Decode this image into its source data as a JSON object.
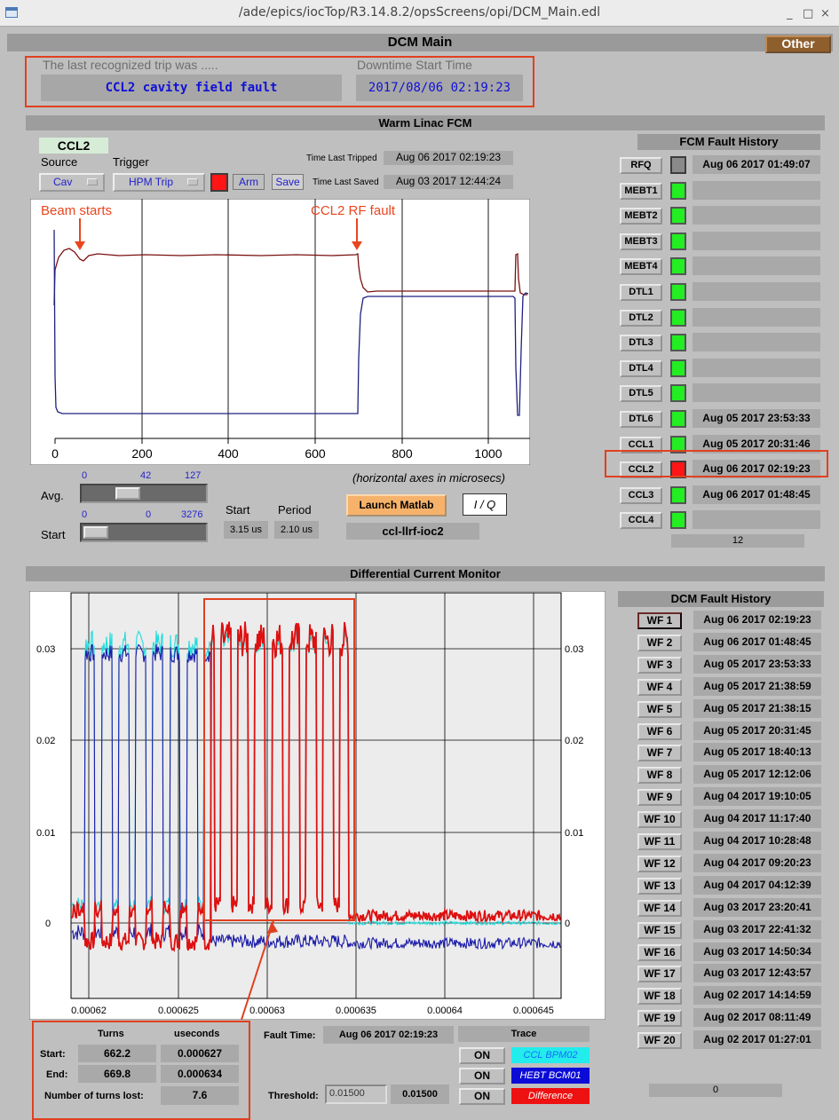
{
  "window": {
    "title": "/ade/epics/iocTop/R3.14.8.2/opsScreens/opi/DCM_Main.edl",
    "min": "_",
    "max": "□",
    "close": "×"
  },
  "header": {
    "title": "DCM Main",
    "other_button": "Other"
  },
  "trip": {
    "label": "The last recognized trip was .....",
    "value": "CCL2 cavity field fault",
    "downtime_label": "Downtime Start Time",
    "downtime_value": "2017/08/06 02:19:23"
  },
  "fcm": {
    "section_title": "Warm Linac FCM",
    "cavity": "CCL2",
    "source_label": "Source",
    "trigger_label": "Trigger",
    "source_value": "Cav",
    "trigger_value": "HPM Trip",
    "arm_label": "Arm",
    "save_label": "Save",
    "time_last_tripped_label": "Time Last Tripped",
    "time_last_tripped": "Aug 06 2017 02:19:23",
    "time_last_saved_label": "Time Last Saved",
    "time_last_saved": "Aug 03 2017 12:44:24",
    "annot_beam": "Beam starts",
    "annot_fault": "CCL2 RF fault",
    "x_ticks": [
      "0",
      "200",
      "400",
      "600",
      "800",
      "1000"
    ],
    "axes_note": "(horizontal axes in microsecs)",
    "avg_label": "Avg.",
    "avg_slider": {
      "min": "0",
      "value": "42",
      "max": "127",
      "fraction": 0.33
    },
    "start_label": "Start",
    "start_slider": {
      "min": "0",
      "value": "0",
      "max": "3276",
      "fraction": 0.0
    },
    "start_col_label": "Start",
    "period_col_label": "Period",
    "start_value": "3.15 us",
    "period_value": "2.10 us",
    "launch_button": "Launch Matlab",
    "iq_button": "I / Q",
    "ioc_name": "ccl-llrf-ioc2"
  },
  "fcm_history": {
    "title": "FCM Fault History",
    "count": "12",
    "rows": [
      {
        "name": "RFQ",
        "status": "grey",
        "time": "Aug 06 2017 01:49:07"
      },
      {
        "name": "MEBT1",
        "status": "green",
        "time": ""
      },
      {
        "name": "MEBT2",
        "status": "green",
        "time": ""
      },
      {
        "name": "MEBT3",
        "status": "green",
        "time": ""
      },
      {
        "name": "MEBT4",
        "status": "green",
        "time": ""
      },
      {
        "name": "DTL1",
        "status": "green",
        "time": ""
      },
      {
        "name": "DTL2",
        "status": "green",
        "time": ""
      },
      {
        "name": "DTL3",
        "status": "green",
        "time": ""
      },
      {
        "name": "DTL4",
        "status": "green",
        "time": ""
      },
      {
        "name": "DTL5",
        "status": "green",
        "time": ""
      },
      {
        "name": "DTL6",
        "status": "green",
        "time": "Aug 05 2017 23:53:33"
      },
      {
        "name": "CCL1",
        "status": "green",
        "time": "Aug 05 2017 20:31:46"
      },
      {
        "name": "CCL2",
        "status": "red",
        "time": "Aug 06 2017 02:19:23"
      },
      {
        "name": "CCL3",
        "status": "green",
        "time": "Aug 06 2017 01:48:45"
      },
      {
        "name": "CCL4",
        "status": "green",
        "time": ""
      }
    ]
  },
  "dcm": {
    "section_title": "Differential Current Monitor",
    "y_ticks": [
      "0.03",
      "0.02",
      "0.01",
      "0"
    ],
    "x_ticks": [
      "0.00062",
      "0.000625",
      "0.00063",
      "0.000635",
      "0.00064",
      "0.000645"
    ],
    "turns_header": "Turns",
    "useconds_header": "useconds",
    "start_label": "Start:",
    "end_label": "End:",
    "start_turns": "662.2",
    "start_useconds": "0.000627",
    "end_turns": "669.8",
    "end_useconds": "0.000634",
    "lost_label": "Number of turns lost:",
    "lost_value": "7.6",
    "fault_time_label": "Fault Time:",
    "fault_time": "Aug 06 2017 02:19:23",
    "threshold_label": "Threshold:",
    "threshold_input": "0.01500",
    "threshold_value": "0.01500",
    "trace_header": "Trace",
    "traces": [
      {
        "on": "ON",
        "name": "CCL BPM02",
        "bg": "#22ecec",
        "fg": "#1a6aff"
      },
      {
        "on": "ON",
        "name": "HEBT BCM01",
        "bg": "#0b0bd8",
        "fg": "#ffffff"
      },
      {
        "on": "ON",
        "name": "Difference",
        "bg": "#ee1111",
        "fg": "#ffffff"
      }
    ]
  },
  "dcm_history": {
    "title": "DCM Fault History",
    "count": "0",
    "rows": [
      {
        "name": "WF 1",
        "time": "Aug 06 2017 02:19:23"
      },
      {
        "name": "WF 2",
        "time": "Aug 06 2017 01:48:45"
      },
      {
        "name": "WF 3",
        "time": "Aug 05 2017 23:53:33"
      },
      {
        "name": "WF 4",
        "time": "Aug 05 2017 21:38:59"
      },
      {
        "name": "WF 5",
        "time": "Aug 05 2017 21:38:15"
      },
      {
        "name": "WF 6",
        "time": "Aug 05 2017 20:31:45"
      },
      {
        "name": "WF 7",
        "time": "Aug 05 2017 18:40:13"
      },
      {
        "name": "WF 8",
        "time": "Aug 05 2017 12:12:06"
      },
      {
        "name": "WF 9",
        "time": "Aug 04 2017 19:10:05"
      },
      {
        "name": "WF 10",
        "time": "Aug 04 2017 11:17:40"
      },
      {
        "name": "WF 11",
        "time": "Aug 04 2017 10:28:48"
      },
      {
        "name": "WF 12",
        "time": "Aug 04 2017 09:20:23"
      },
      {
        "name": "WF 13",
        "time": "Aug 04 2017 04:12:39"
      },
      {
        "name": "WF 14",
        "time": "Aug 03 2017 23:20:41"
      },
      {
        "name": "WF 15",
        "time": "Aug 03 2017 22:41:32"
      },
      {
        "name": "WF 16",
        "time": "Aug 03 2017 14:50:34"
      },
      {
        "name": "WF 17",
        "time": "Aug 03 2017 12:43:57"
      },
      {
        "name": "WF 18",
        "time": "Aug 02 2017 14:14:59"
      },
      {
        "name": "WF 19",
        "time": "Aug 02 2017 08:11:49"
      },
      {
        "name": "WF 20",
        "time": "Aug 02 2017 01:27:01"
      }
    ]
  },
  "colors": {
    "accent_red": "#e04020",
    "field_blue": "#1010d8",
    "led_green": "#22ee22",
    "led_red": "#ff1515"
  }
}
